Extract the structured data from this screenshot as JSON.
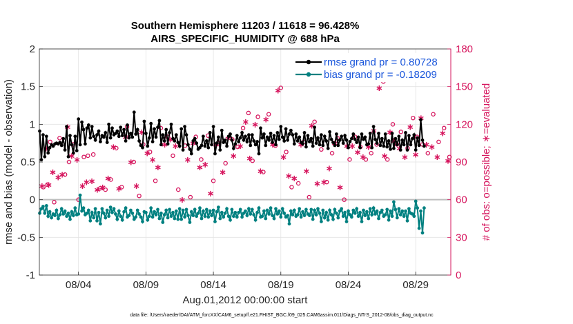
{
  "chart_data": {
    "type": "line",
    "title_line1": "Southern Hemisphere 11203 / 11618 = 96.428%",
    "title_line2": "AIRS_SPECIFIC_HUMIDITY @ 688 hPa",
    "xlabel": "Aug.01,2012 00:00:00 start",
    "ylabel_left": "rmse and bias (model - observation)",
    "ylabel_right": "# of obs: o=possible; ∗=evaluated",
    "footnote": "data file: /Users/raeder/DAI/ATM_forcXX/CAM6_setup/f.e21.FHIST_BGC.f09_025.CAM6assim.011/Diags_NTrS_2012-08/obs_diag_output.nc",
    "xlim_days": [
      0.6,
      31.1
    ],
    "ylim_left": [
      -1,
      2
    ],
    "ylim_right": [
      0,
      180
    ],
    "x_ticks": [
      {
        "day": 3.5,
        "label": "08/04"
      },
      {
        "day": 8.5,
        "label": "08/09"
      },
      {
        "day": 13.5,
        "label": "08/14"
      },
      {
        "day": 18.5,
        "label": "08/19"
      },
      {
        "day": 23.5,
        "label": "08/24"
      },
      {
        "day": 28.5,
        "label": "08/29"
      }
    ],
    "y_ticks_left": [
      {
        "value": -1,
        "label": "-1"
      },
      {
        "value": -0.5,
        "label": "-0.5"
      },
      {
        "value": 0,
        "label": "0"
      },
      {
        "value": 0.5,
        "label": "0.5"
      },
      {
        "value": 1,
        "label": "1"
      },
      {
        "value": 1.5,
        "label": "1.5"
      },
      {
        "value": 2,
        "label": "2"
      }
    ],
    "y_ticks_right": [
      {
        "value": 0,
        "label": "0"
      },
      {
        "value": 30,
        "label": "30"
      },
      {
        "value": 60,
        "label": "60"
      },
      {
        "value": 90,
        "label": "90"
      },
      {
        "value": 120,
        "label": "120"
      },
      {
        "value": 150,
        "label": "150"
      },
      {
        "value": 180,
        "label": "180"
      }
    ],
    "x_start_day": 0.625,
    "x_step_days": 0.125,
    "series": [
      {
        "name": "rmse grand pr = 0.80728",
        "color": "#000000",
        "axis": "left",
        "values": [
          0.91,
          0.53,
          0.86,
          0.57,
          0.84,
          0.62,
          0.69,
          0.73,
          0.71,
          0.74,
          0.75,
          0.74,
          0.76,
          0.72,
          0.81,
          0.66,
          0.97,
          0.57,
          0.85,
          0.73,
          0.62,
          0.84,
          0.65,
          1.07,
          0.73,
          1.03,
          0.93,
          0.74,
          0.95,
          0.99,
          0.82,
          0.97,
          0.84,
          0.79,
          0.86,
          0.91,
          0.77,
          0.85,
          0.83,
          0.89,
          0.76,
          1.0,
          0.82,
          0.95,
          0.86,
          0.88,
          0.91,
          0.84,
          0.96,
          0.85,
          0.93,
          0.78,
          0.99,
          0.82,
          0.88,
          0.83,
          1.16,
          0.87,
          0.93,
          0.78,
          0.72,
          0.69,
          1.04,
          0.88,
          0.71,
          0.82,
          1.01,
          0.77,
          0.94,
          0.83,
          0.96,
          1.05,
          0.73,
          0.86,
          0.78,
          0.93,
          0.74,
          0.89,
          1.0,
          0.81,
          0.78,
          0.86,
          0.76,
          0.71,
          0.94,
          0.66,
          0.97,
          0.86,
          0.73,
          0.67,
          0.61,
          0.78,
          0.81,
          0.75,
          0.67,
          0.69,
          0.72,
          0.84,
          0.71,
          0.78,
          0.69,
          0.89,
          0.73,
          0.97,
          0.61,
          0.75,
          0.83,
          0.66,
          0.92,
          0.76,
          0.79,
          0.71,
          0.84,
          0.87,
          0.79,
          0.68,
          0.74,
          0.85,
          0.77,
          0.82,
          0.89,
          0.79,
          0.84,
          0.77,
          0.86,
          0.72,
          0.86,
          0.78,
          0.73,
          0.77,
          0.61,
          0.95,
          0.82,
          0.87,
          0.72,
          0.83,
          0.79,
          0.88,
          0.76,
          0.85,
          0.73,
          0.89,
          0.8,
          0.97,
          0.83,
          0.78,
          0.94,
          0.79,
          0.87,
          0.92,
          0.86,
          0.74,
          0.87,
          0.78,
          0.83,
          0.76,
          0.74,
          0.89,
          0.7,
          0.85,
          0.77,
          0.81,
          0.71,
          0.96,
          0.75,
          0.82,
          0.73,
          0.86,
          0.72,
          0.84,
          0.78,
          0.68,
          0.9,
          0.8,
          0.76,
          0.72,
          0.87,
          0.72,
          0.79,
          0.84,
          0.75,
          0.85,
          0.79,
          0.69,
          0.77,
          0.81,
          0.87,
          0.8,
          0.76,
          0.83,
          0.69,
          0.87,
          0.8,
          0.83,
          0.73,
          0.74,
          0.88,
          0.69,
          0.97,
          0.8,
          0.75,
          0.88,
          0.72,
          0.81,
          0.71,
          0.87,
          0.7,
          0.78,
          0.67,
          0.88,
          0.68,
          0.81,
          0.73,
          0.84,
          0.66,
          0.79,
          0.73,
          0.89,
          0.66,
          0.85,
          0.73,
          0.81,
          0.86,
          0.66,
          0.82,
          0.72,
          1.06,
          0.79,
          0.71
        ]
      },
      {
        "name": "bias grand pr = -0.18209",
        "color": "#008080",
        "axis": "left",
        "values": [
          -0.18,
          -0.12,
          -0.09,
          -0.18,
          -0.08,
          -0.22,
          -0.16,
          -0.24,
          -0.19,
          -0.21,
          -0.14,
          -0.25,
          -0.2,
          -0.12,
          -0.19,
          -0.15,
          -0.22,
          -0.18,
          -0.26,
          -0.16,
          -0.21,
          -0.11,
          -0.2,
          -0.19,
          0.06,
          -0.15,
          -0.11,
          -0.2,
          -0.18,
          -0.14,
          -0.28,
          -0.17,
          -0.24,
          -0.12,
          -0.28,
          -0.17,
          -0.32,
          -0.12,
          -0.18,
          -0.24,
          -0.14,
          -0.22,
          -0.1,
          -0.17,
          -0.12,
          -0.19,
          -0.26,
          -0.15,
          -0.22,
          -0.27,
          -0.16,
          -0.11,
          -0.23,
          -0.21,
          -0.14,
          -0.18,
          -0.26,
          -0.23,
          -0.14,
          -0.19,
          -0.23,
          -0.29,
          -0.16,
          -0.17,
          -0.27,
          -0.22,
          -0.11,
          -0.23,
          -0.16,
          -0.2,
          -0.13,
          -0.25,
          -0.18,
          -0.3,
          -0.2,
          -0.14,
          -0.24,
          -0.13,
          -0.22,
          -0.17,
          -0.25,
          -0.15,
          -0.26,
          -0.12,
          -0.26,
          -0.14,
          -0.23,
          -0.13,
          -0.21,
          -0.3,
          -0.16,
          -0.21,
          -0.13,
          -0.22,
          -0.18,
          -0.11,
          -0.25,
          -0.15,
          -0.22,
          -0.13,
          -0.23,
          -0.15,
          -0.21,
          -0.14,
          -0.29,
          -0.16,
          -0.1,
          -0.25,
          -0.17,
          -0.23,
          -0.18,
          -0.12,
          -0.22,
          -0.27,
          -0.13,
          -0.22,
          -0.17,
          -0.23,
          -0.17,
          -0.13,
          -0.23,
          -0.18,
          -0.15,
          -0.21,
          -0.12,
          -0.19,
          -0.13,
          -0.2,
          -0.27,
          -0.17,
          -0.11,
          -0.23,
          -0.22,
          -0.15,
          -0.25,
          -0.14,
          -0.19,
          -0.11,
          -0.21,
          -0.25,
          -0.12,
          -0.19,
          -0.15,
          -0.23,
          -0.12,
          -0.18,
          -0.23,
          -0.21,
          -0.32,
          -0.15,
          -0.2,
          -0.14,
          -0.22,
          -0.2,
          -0.12,
          -0.23,
          -0.16,
          -0.21,
          -0.13,
          -0.19,
          -0.21,
          -0.13,
          -0.26,
          -0.14,
          -0.2,
          -0.12,
          -0.18,
          -0.29,
          -0.14,
          -0.24,
          -0.17,
          -0.27,
          -0.14,
          -0.2,
          -0.26,
          -0.13,
          -0.18,
          -0.24,
          -0.15,
          -0.12,
          -0.22,
          -0.17,
          -0.29,
          -0.15,
          -0.2,
          -0.23,
          -0.14,
          -0.18,
          -0.12,
          -0.22,
          -0.17,
          -0.29,
          -0.14,
          -0.21,
          -0.16,
          -0.25,
          -0.12,
          -0.2,
          -0.11,
          -0.19,
          -0.15,
          -0.25,
          -0.17,
          -0.14,
          -0.22,
          -0.2,
          -0.13,
          -0.27,
          -0.15,
          -0.22,
          -0.03,
          -0.13,
          -0.24,
          -0.12,
          -0.2,
          -0.15,
          -0.22,
          -0.15,
          -0.28,
          -0.12,
          -0.18,
          -0.19,
          -0.22,
          -0.02,
          -0.11,
          -0.38,
          -0.15,
          -0.44,
          -0.11
        ]
      }
    ],
    "obs_possible": {
      "name": "possible",
      "axis": "right",
      "marker": "o",
      "color": "#d6165e",
      "x_days": [
        0.9,
        1.2,
        1.4,
        1.7,
        2.1,
        2.5,
        2.8,
        3.1,
        3.5,
        3.9,
        4.2,
        4.6,
        5.1,
        5.5,
        5.9,
        6.3,
        6.7,
        7.1,
        7.6,
        8.0,
        8.3,
        8.8,
        9.2,
        9.6,
        10.1,
        10.5,
        10.9,
        11.4,
        11.8,
        12.2,
        12.6,
        13.1,
        13.5,
        13.9,
        14.4,
        14.9,
        15.3,
        15.7,
        16.1,
        16.4,
        16.8,
        17.2,
        17.6,
        18.1,
        18.5,
        18.9,
        19.3,
        19.8,
        20.2,
        20.6,
        21.0,
        21.5,
        21.9,
        22.3,
        22.7,
        23.2,
        23.6,
        24.0,
        24.4,
        24.8,
        25.2,
        25.6,
        26.1,
        26.4,
        26.8,
        27.1,
        27.4,
        27.9,
        28.3,
        28.6,
        29.0,
        29.4,
        29.8,
        30.2,
        30.6,
        31.0
      ],
      "values": [
        70,
        72,
        106,
        58,
        109,
        80,
        90,
        104,
        60,
        94,
        95,
        96,
        69,
        68,
        76,
        101,
        70,
        118,
        90,
        63,
        104,
        98,
        75,
        117,
        110,
        95,
        68,
        103,
        62,
        110,
        92,
        111,
        75,
        105,
        89,
        108,
        102,
        117,
        129,
        91,
        126,
        82,
        128,
        103,
        149,
        98,
        70,
        73,
        106,
        62,
        122,
        100,
        74,
        97,
        109,
        60,
        92,
        110,
        102,
        92,
        97,
        104,
        154,
        92,
        120,
        104,
        114,
        101,
        125,
        110,
        104,
        97,
        128,
        106,
        117,
        94
      ]
    },
    "obs_evaluated": {
      "name": "evaluated",
      "axis": "right",
      "marker": "*",
      "color": "#d6165e",
      "x_days": [
        0.8,
        1.1,
        1.3,
        1.6,
        2.0,
        2.3,
        2.7,
        3.0,
        3.4,
        3.8,
        4.1,
        4.5,
        4.9,
        5.3,
        5.7,
        6.1,
        6.5,
        7.0,
        7.4,
        7.8,
        8.2,
        8.6,
        9.0,
        9.4,
        9.9,
        10.3,
        10.7,
        11.2,
        11.6,
        12.0,
        12.5,
        12.9,
        13.3,
        13.7,
        14.2,
        14.6,
        15.0,
        15.5,
        15.9,
        16.2,
        16.6,
        17.0,
        17.4,
        17.9,
        18.3,
        18.7,
        19.1,
        19.5,
        20.0,
        20.4,
        20.8,
        21.2,
        21.7,
        22.1,
        22.5,
        22.9,
        23.4,
        23.8,
        24.2,
        24.6,
        25.0,
        25.4,
        25.8,
        26.2,
        26.6,
        26.9,
        27.3,
        27.7,
        28.1,
        28.5,
        28.9,
        29.3,
        29.7,
        30.1,
        30.5,
        30.9
      ],
      "values": [
        71,
        101,
        72,
        82,
        78,
        80,
        118,
        95,
        92,
        71,
        74,
        75,
        68,
        70,
        77,
        102,
        69,
        110,
        90,
        71,
        114,
        97,
        92,
        86,
        104,
        108,
        103,
        60,
        92,
        105,
        86,
        88,
        65,
        104,
        82,
        109,
        95,
        103,
        122,
        93,
        120,
        83,
        124,
        104,
        147,
        94,
        79,
        77,
        104,
        83,
        119,
        73,
        74,
        85,
        105,
        70,
        103,
        103,
        98,
        94,
        102,
        115,
        149,
        95,
        114,
        107,
        101,
        94,
        118,
        96,
        125,
        104,
        102,
        94,
        113,
        91
      ]
    }
  }
}
